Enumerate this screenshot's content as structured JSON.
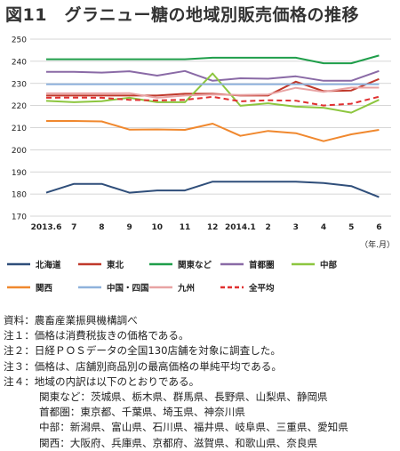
{
  "title": "図11　グラニュー糖の地域別販売価格の推移",
  "chart_data": {
    "type": "line",
    "categories": [
      "2013.6",
      "7",
      "8",
      "9",
      "10",
      "11",
      "12",
      "2014.1",
      "2",
      "3",
      "4",
      "5",
      "6"
    ],
    "unit_label": "（年.月）",
    "ylim": [
      170,
      250
    ],
    "yticks": [
      170,
      180,
      190,
      200,
      210,
      220,
      230,
      240,
      250
    ],
    "grid": true,
    "legend_position": "bottom",
    "series": [
      {
        "name": "北海道",
        "color": "#2f4e7a",
        "dash": false,
        "values": [
          180.6,
          184.6,
          184.6,
          180.6,
          181.6,
          181.6,
          185.6,
          185.6,
          185.6,
          185.6,
          185.0,
          183.6,
          178.6
        ]
      },
      {
        "name": "東北",
        "color": "#c0392b",
        "dash": false,
        "values": [
          224.5,
          224.5,
          224.5,
          224.5,
          224.5,
          225.3,
          225.3,
          224.5,
          224.5,
          230.8,
          226.5,
          226.8,
          232.0
        ]
      },
      {
        "name": "関東など",
        "color": "#1f9e4a",
        "dash": false,
        "values": [
          240.9,
          240.9,
          240.9,
          240.9,
          240.9,
          240.9,
          241.6,
          241.6,
          241.6,
          241.6,
          239.1,
          239.1,
          242.6
        ]
      },
      {
        "name": "首都圏",
        "color": "#8a6aa6",
        "dash": false,
        "values": [
          235.2,
          235.2,
          234.9,
          235.5,
          233.5,
          235.6,
          231.2,
          232.3,
          232.1,
          233.2,
          231.2,
          231.2,
          235.6
        ]
      },
      {
        "name": "中部",
        "color": "#8dc63f",
        "dash": false,
        "values": [
          222.1,
          221.5,
          222.0,
          223.5,
          221.5,
          221.5,
          234.5,
          219.9,
          221.0,
          219.5,
          219.0,
          216.8,
          222.6
        ]
      },
      {
        "name": "関西",
        "color": "#f0882e",
        "dash": false,
        "values": [
          213.0,
          213.0,
          212.8,
          209.1,
          209.2,
          209.0,
          211.8,
          206.3,
          208.5,
          207.5,
          203.9,
          207.0,
          209.0
        ]
      },
      {
        "name": "中国・四国",
        "color": "#8fb2dc",
        "dash": false,
        "values": [
          229.6,
          229.6,
          229.6,
          229.6,
          229.6,
          229.6,
          229.6,
          229.6,
          229.6,
          229.6,
          229.6,
          229.6,
          229.6
        ]
      },
      {
        "name": "九州",
        "color": "#e8a3a3",
        "dash": false,
        "values": [
          225.5,
          225.5,
          225.5,
          225.6,
          223.5,
          224.5,
          225.0,
          224.8,
          225.0,
          228.0,
          226.2,
          228.1,
          228.1
        ]
      },
      {
        "name": "全平均",
        "color": "#e03030",
        "dash": true,
        "values": [
          223.5,
          223.6,
          223.5,
          222.6,
          222.3,
          222.6,
          223.9,
          221.9,
          222.4,
          222.2,
          220.0,
          220.8,
          224.0
        ]
      }
    ]
  },
  "notes": [
    {
      "text": "資料：農畜産業振興機構調べ",
      "indent": false
    },
    {
      "text": "注１：価格は消費税抜きの価格である。",
      "indent": false
    },
    {
      "text": "注２：日経ＰＯＳデータの全国130店舗を対象に調査した。",
      "indent": false
    },
    {
      "text": "注３：価格は、店舗別商品別の最高価格の単純平均である。",
      "indent": false
    },
    {
      "text": "注４：地域の内訳は以下のとおりである。",
      "indent": false
    },
    {
      "text": "関東など：茨城県、栃木県、群馬県、長野県、山梨県、静岡県",
      "indent": true
    },
    {
      "text": "首都圏：東京都、千葉県、埼玉県、神奈川県",
      "indent": true
    },
    {
      "text": "中部：新潟県、富山県、石川県、福井県、岐阜県、三重県、愛知県",
      "indent": true
    },
    {
      "text": "関西：大阪府、兵庫県、京都府、滋賀県、和歌山県、奈良県",
      "indent": true
    }
  ]
}
